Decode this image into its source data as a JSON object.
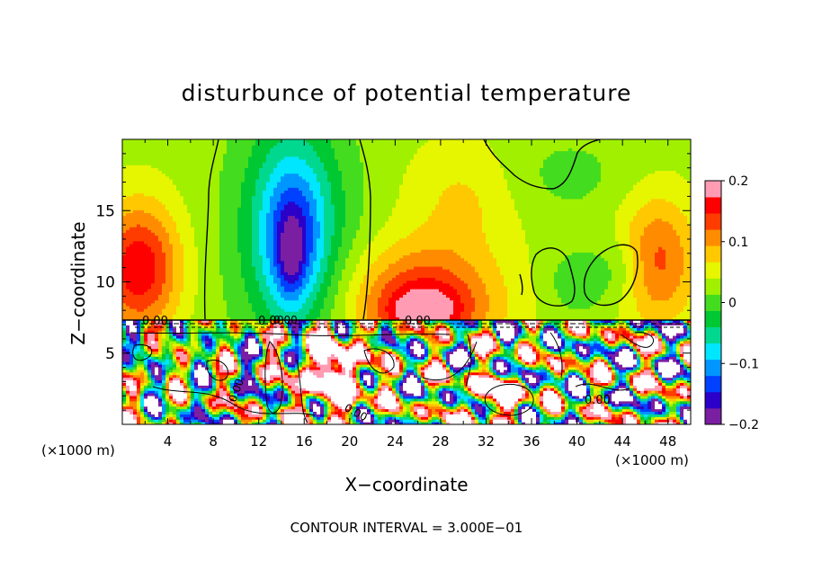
{
  "chart_data": {
    "type": "heatmap",
    "title": "disturbunce of potential temperature",
    "xlabel": "X−coordinate",
    "ylabel": "Z−coordinate",
    "x_unit_left": "(×1000 m)",
    "x_unit_right": "(×1000 m)",
    "xlim": [
      0,
      50
    ],
    "ylim": [
      0,
      20
    ],
    "x_ticks": [
      "4",
      "8",
      "12",
      "16",
      "20",
      "24",
      "28",
      "32",
      "36",
      "40",
      "44",
      "48"
    ],
    "y_ticks": [
      "5",
      "10",
      "15"
    ],
    "colorbar": {
      "range": [
        -0.2,
        0.2
      ],
      "tick_labels": [
        "0.2",
        "0.1",
        "0",
        "−0.1",
        "−0.2"
      ]
    },
    "contour_labels": [
      "0.00",
      "0.00",
      "0.00",
      "0.00",
      "0.00",
      "0.00",
      "0.00"
    ],
    "footnote": "CONTOUR INTERVAL = 3.000E−01",
    "colors": {
      "stops": [
        "#7b1fa2",
        "#2b00c8",
        "#0040ff",
        "#0096ff",
        "#00e6ff",
        "#00d890",
        "#00c832",
        "#44dc1e",
        "#a0f000",
        "#e6f500",
        "#ffc800",
        "#ff8c00",
        "#ff3c00",
        "#ff0000",
        "#ff9cb4"
      ]
    },
    "blobs": [
      {
        "x": 15,
        "z": 13.5,
        "rx": 5.8,
        "rz": 9.5,
        "v": -0.05
      },
      {
        "x": 15,
        "z": 14,
        "rx": 4.2,
        "rz": 7.5,
        "v": -0.05
      },
      {
        "x": 15,
        "z": 13.5,
        "rx": 3.0,
        "rz": 5.5,
        "v": -0.06
      },
      {
        "x": 15,
        "z": 12.5,
        "rx": 2.0,
        "rz": 4.0,
        "v": -0.05
      },
      {
        "x": 14.8,
        "z": 11.5,
        "rx": 1.0,
        "rz": 2.5,
        "v": -0.05
      },
      {
        "x": 1.5,
        "z": 11,
        "rx": 3.5,
        "rz": 4.5,
        "v": 0.14
      },
      {
        "x": 26.5,
        "z": 8.5,
        "rx": 6.5,
        "rz": 4.0,
        "v": 0.13
      },
      {
        "x": 26.5,
        "z": 8.0,
        "rx": 3.0,
        "rz": 1.5,
        "v": 0.07
      },
      {
        "x": 47,
        "z": 11.5,
        "rx": 3.5,
        "rz": 4.5,
        "v": 0.1
      },
      {
        "x": 30,
        "z": 16,
        "rx": 5,
        "rz": 4,
        "v": 0.04
      },
      {
        "x": 40,
        "z": 10,
        "rx": 2.5,
        "rz": 2.2,
        "v": -0.04
      },
      {
        "x": 44,
        "z": 11,
        "rx": 2.5,
        "rz": 2.5,
        "v": -0.04
      },
      {
        "x": 39,
        "z": 17.5,
        "rx": 6,
        "rz": 3,
        "v": -0.025
      }
    ]
  }
}
